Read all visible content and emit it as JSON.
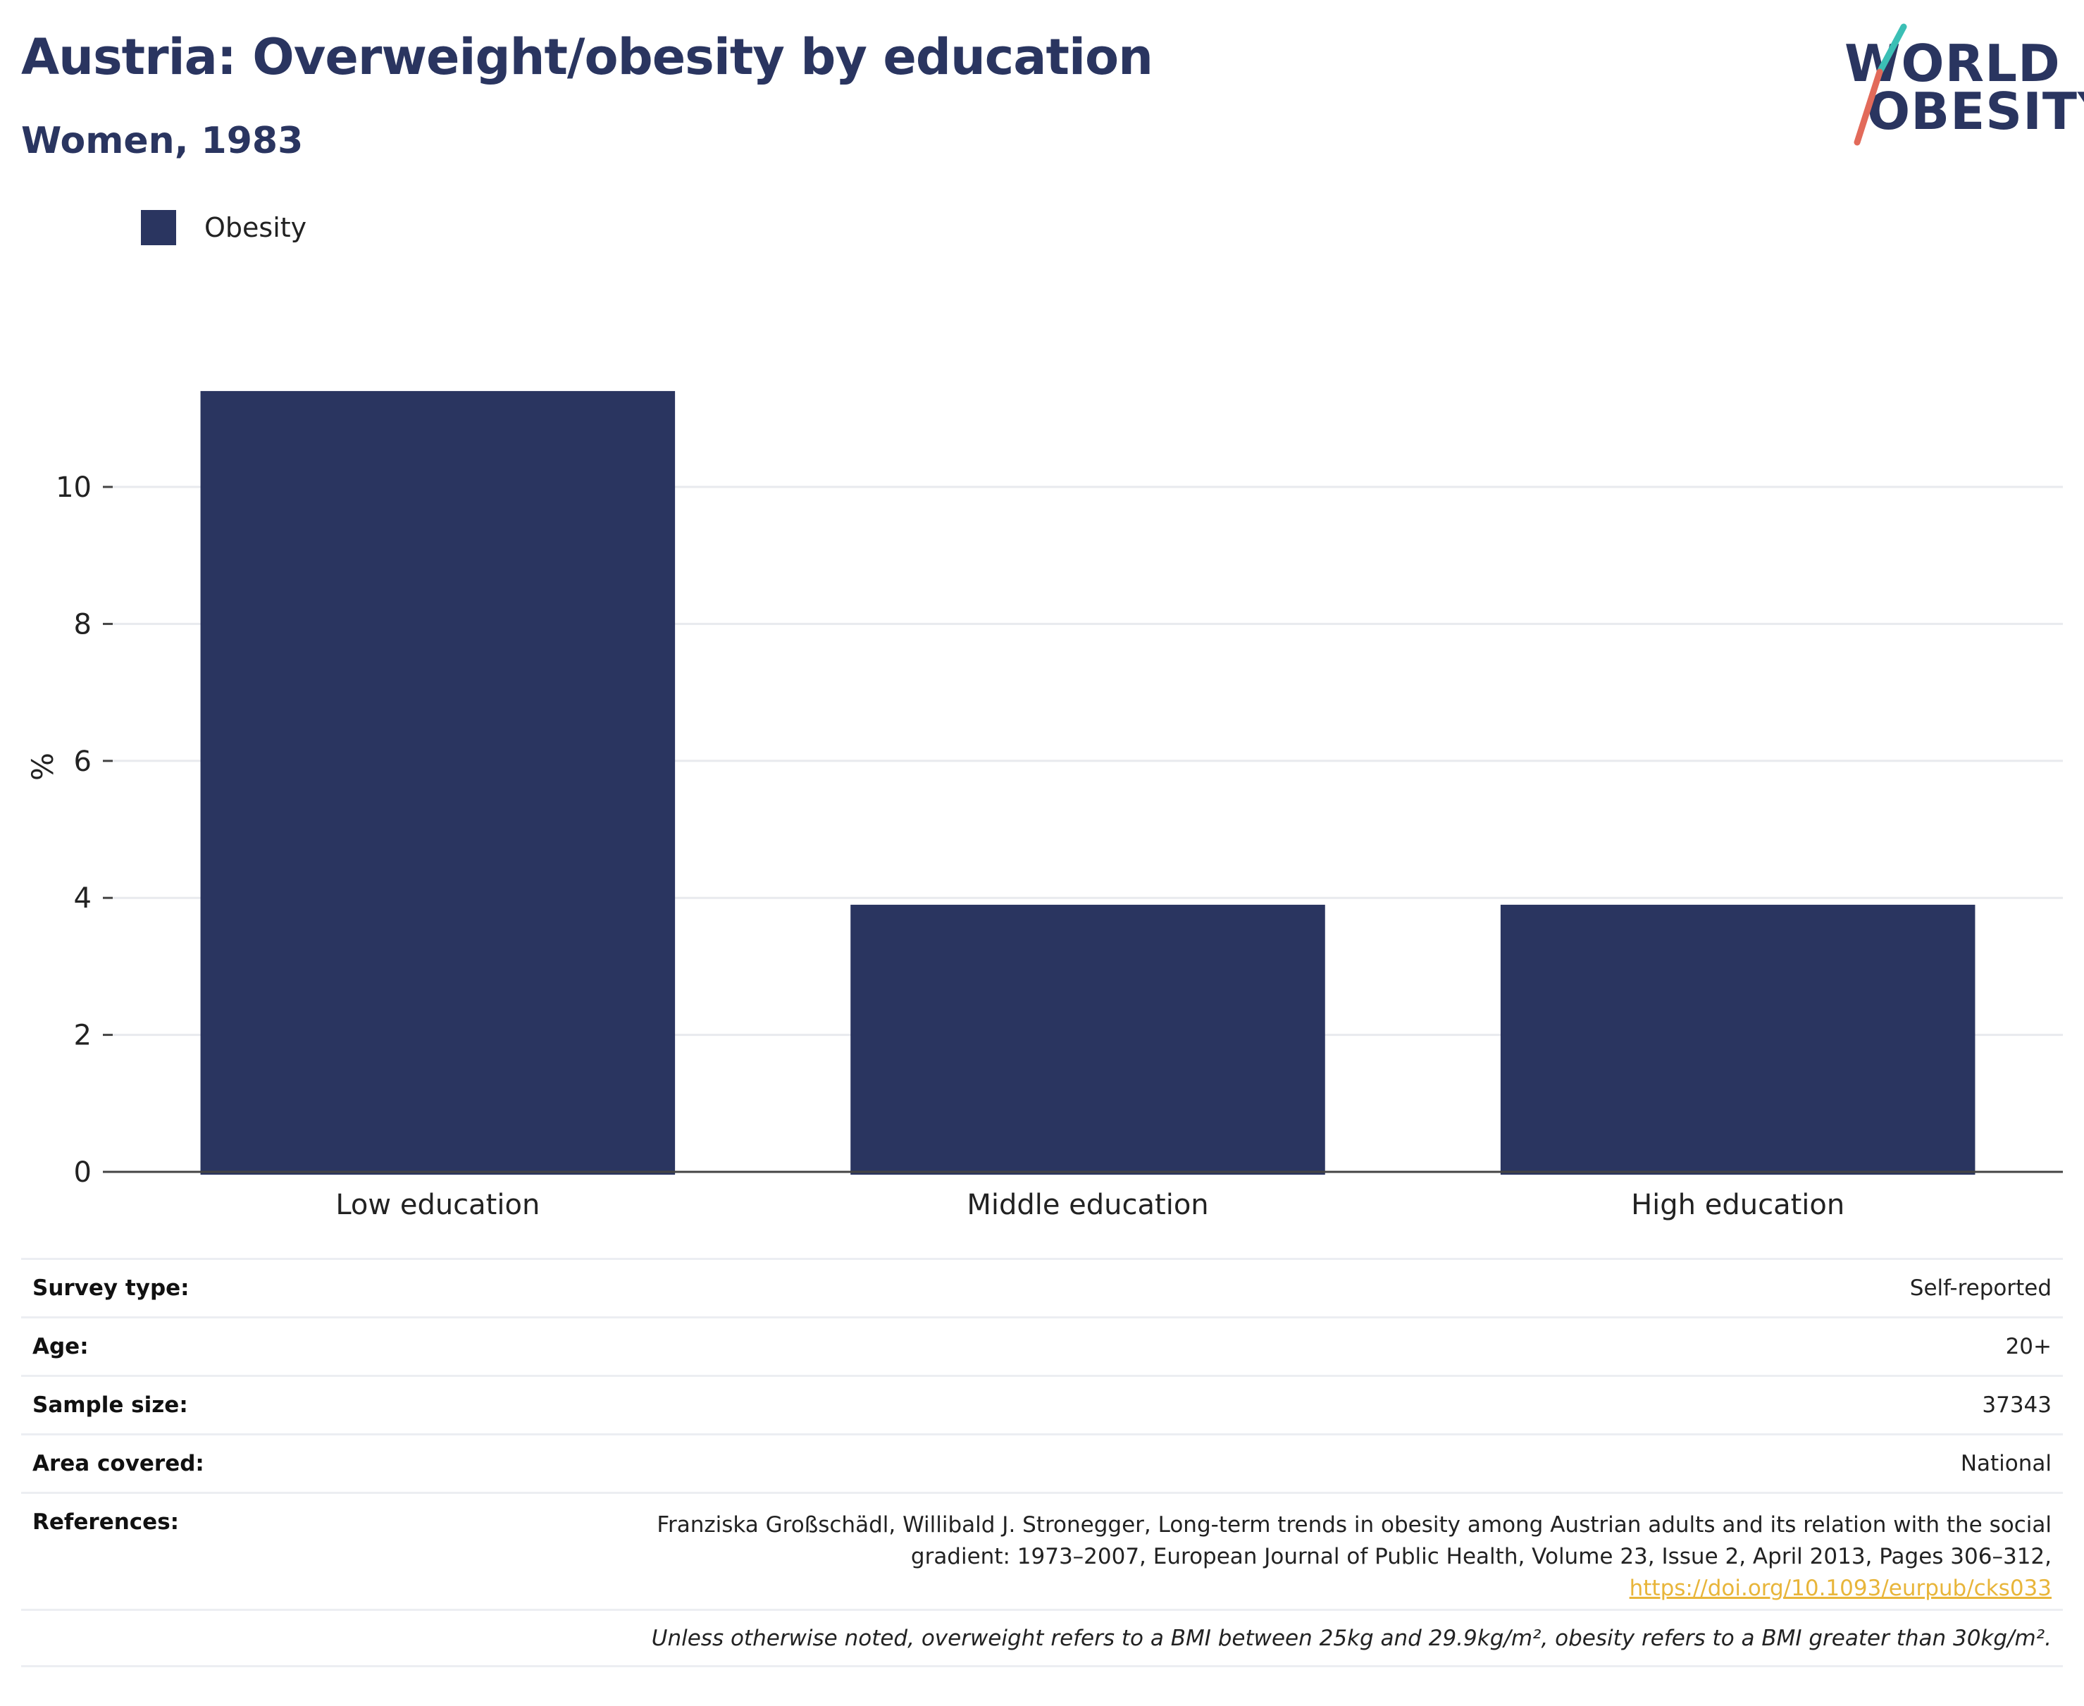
{
  "header": {
    "title": "Austria: Overweight/obesity by education",
    "subtitle": "Women, 1983"
  },
  "logo": {
    "line1": "WORLD",
    "line2": "OBESITY",
    "accent_teal": "#3bbfb5",
    "accent_red": "#e26a5a"
  },
  "legend": {
    "label": "Obesity",
    "color": "#2a3560"
  },
  "chart_data": {
    "type": "bar",
    "categories": [
      "Low education",
      "Middle education",
      "High education"
    ],
    "series": [
      {
        "name": "Obesity",
        "values": [
          11.4,
          3.9,
          3.9
        ],
        "color": "#2a3560"
      }
    ],
    "ylabel": "%",
    "ylim": [
      0,
      12
    ],
    "yticks": [
      0,
      2,
      4,
      6,
      8,
      10
    ],
    "grid": true,
    "legend_position": "top-left"
  },
  "info": {
    "survey_type": {
      "label": "Survey type:",
      "value": "Self-reported"
    },
    "age": {
      "label": "Age:",
      "value": "20+"
    },
    "sample_size": {
      "label": "Sample size:",
      "value": "37343"
    },
    "area_covered": {
      "label": "Area covered:",
      "value": "National"
    },
    "references": {
      "label": "References:",
      "line1": "Franziska Großschädl, Willibald J. Stronegger, Long-term trends in obesity among Austrian adults and its relation with the social",
      "line2": "gradient: 1973–2007, European Journal of Public Health, Volume 23, Issue 2, April 2013, Pages 306–312,",
      "link": "https://doi.org/10.1093/eurpub/cks033"
    },
    "footnote": "Unless otherwise noted, overweight refers to a BMI between 25kg and 29.9kg/m², obesity refers to a BMI greater than 30kg/m²."
  }
}
